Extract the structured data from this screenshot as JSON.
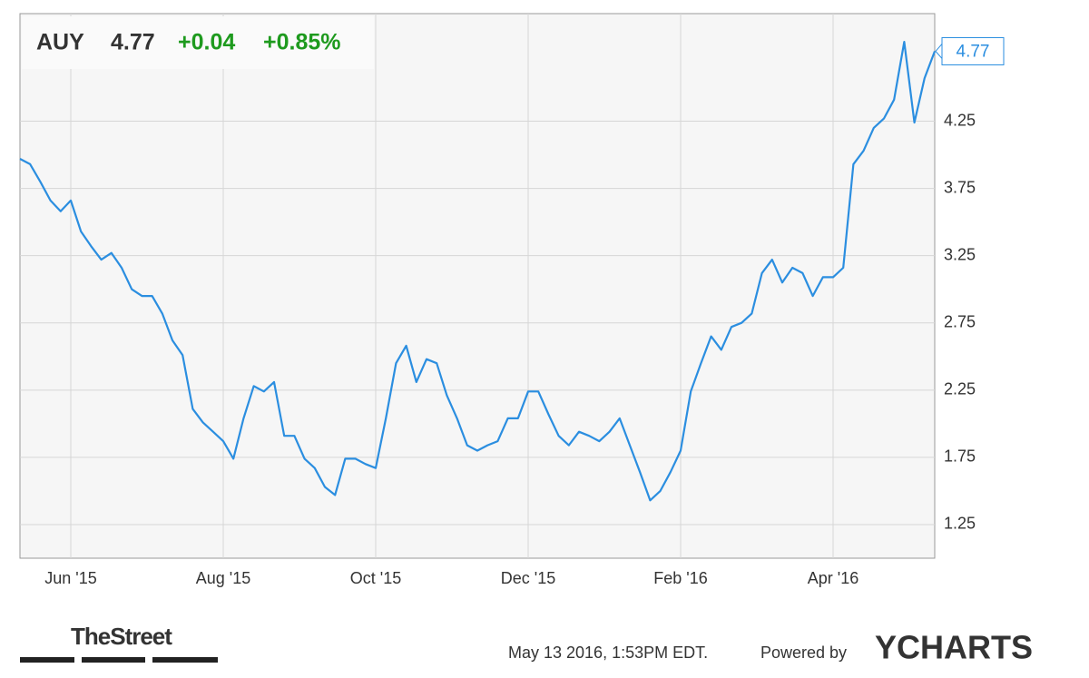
{
  "chart_data": {
    "type": "line",
    "header": {
      "ticker": "AUY",
      "change": "+0.04",
      "change_pct": "+0.85%"
    },
    "categories": [
      null,
      null,
      null,
      null,
      null,
      "Jun '15",
      null,
      null,
      null,
      null,
      null,
      null,
      null,
      null,
      null,
      null,
      null,
      null,
      null,
      null,
      "Aug '15",
      null,
      null,
      null,
      null,
      null,
      null,
      null,
      null,
      null,
      null,
      null,
      null,
      null,
      null,
      "Oct '15",
      null,
      null,
      null,
      null,
      null,
      null,
      null,
      null,
      null,
      null,
      null,
      null,
      null,
      null,
      "Dec '15",
      null,
      null,
      null,
      null,
      null,
      null,
      null,
      null,
      null,
      null,
      null,
      null,
      null,
      null,
      "Feb '16",
      null,
      null,
      null,
      null,
      null,
      null,
      null,
      null,
      null,
      null,
      null,
      null,
      null,
      null,
      "Apr '16",
      null,
      null,
      null,
      null,
      null,
      null,
      null,
      null,
      null,
      null
    ],
    "series": [
      {
        "name": "AUY",
        "color": "#2b8ee0",
        "values": [
          3.97,
          3.93,
          3.8,
          3.66,
          3.58,
          3.66,
          3.43,
          3.32,
          3.22,
          3.27,
          3.16,
          3.0,
          2.95,
          2.95,
          2.82,
          2.62,
          2.51,
          2.11,
          2.01,
          1.94,
          1.87,
          1.74,
          2.04,
          2.28,
          2.24,
          2.31,
          1.91,
          1.91,
          1.74,
          1.67,
          1.53,
          1.47,
          1.74,
          1.74,
          1.7,
          1.67,
          2.04,
          2.45,
          2.58,
          2.31,
          2.48,
          2.45,
          2.21,
          2.04,
          1.84,
          1.8,
          1.84,
          1.87,
          2.04,
          2.04,
          2.24,
          2.24,
          2.07,
          1.91,
          1.84,
          1.94,
          1.91,
          1.87,
          1.94,
          2.04,
          1.84,
          1.64,
          1.43,
          1.5,
          1.64,
          1.8,
          2.24,
          2.45,
          2.65,
          2.55,
          2.72,
          2.75,
          2.82,
          3.12,
          3.22,
          3.05,
          3.16,
          3.12,
          2.95,
          3.09,
          3.09,
          3.16,
          3.93,
          4.03,
          4.2,
          4.27,
          4.41,
          4.84,
          4.24,
          4.57,
          4.77
        ]
      }
    ],
    "ylim": [
      1.0,
      5.05
    ],
    "yticks": [
      1.25,
      1.75,
      2.25,
      2.75,
      3.25,
      3.75,
      4.25
    ],
    "grid": true,
    "footer": {
      "source": "TheStreet",
      "timestamp": "May 13 2016, 1:53PM EDT.",
      "powered": "Powered by",
      "brand": "YCHARTS"
    }
  }
}
